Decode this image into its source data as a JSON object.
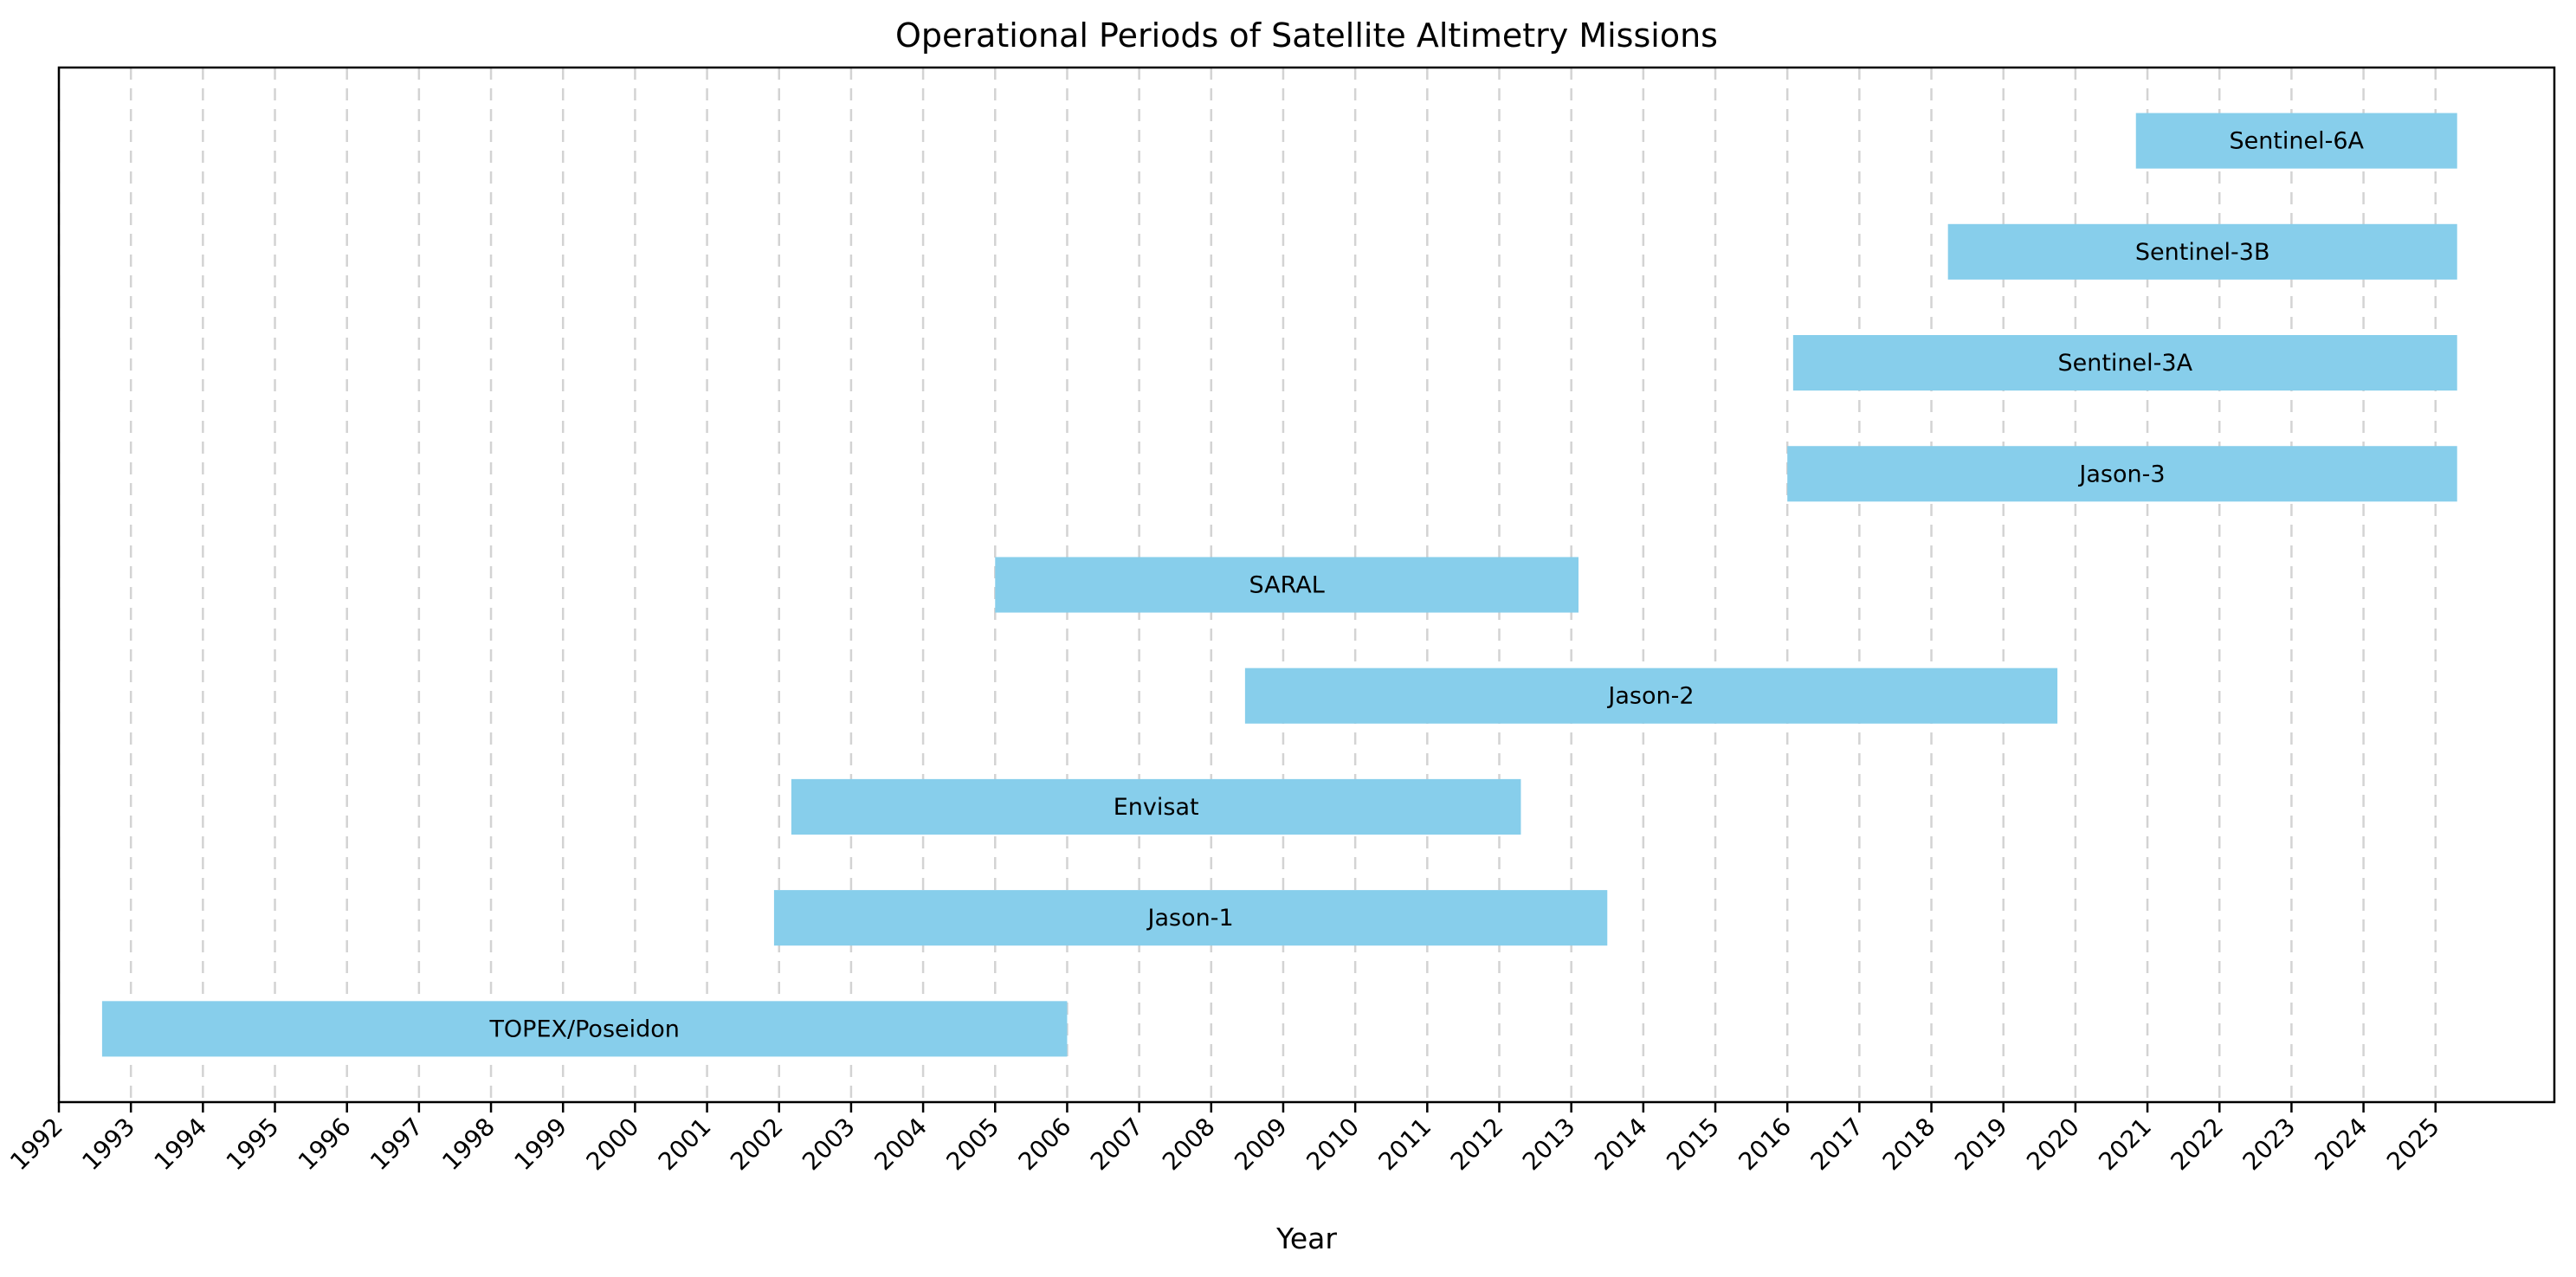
{
  "chart_data": {
    "type": "bar",
    "orientation": "horizontal",
    "title": "Operational Periods of Satellite Altimetry Missions",
    "xlabel": "Year",
    "ylabel": "",
    "xlim": [
      1992,
      2026.65
    ],
    "ylim": [
      -0.66,
      8.66
    ],
    "grid": "x, dashed",
    "bar_color": "#87CEEB",
    "x_ticks": [
      "1992",
      "1993",
      "1994",
      "1995",
      "1996",
      "1997",
      "1998",
      "1999",
      "2000",
      "2001",
      "2002",
      "2003",
      "2004",
      "2005",
      "2006",
      "2007",
      "2008",
      "2009",
      "2010",
      "2011",
      "2012",
      "2013",
      "2014",
      "2015",
      "2016",
      "2017",
      "2018",
      "2019",
      "2020",
      "2021",
      "2022",
      "2023",
      "2024",
      "2025"
    ],
    "missions": [
      {
        "name": "TOPEX/Poseidon",
        "start": 1992.6,
        "end": 2006.0
      },
      {
        "name": "Jason-1",
        "start": 2001.93,
        "end": 2013.5
      },
      {
        "name": "Envisat",
        "start": 2002.17,
        "end": 2012.3
      },
      {
        "name": "Jason-2",
        "start": 2008.47,
        "end": 2019.75
      },
      {
        "name": "SARAL",
        "start": 2005.0,
        "end": 2013.1
      },
      {
        "name": "Jason-3",
        "start": 2016.0,
        "end": 2025.3
      },
      {
        "name": "Sentinel-3A",
        "start": 2016.08,
        "end": 2025.3
      },
      {
        "name": "Sentinel-3B",
        "start": 2018.23,
        "end": 2025.3
      },
      {
        "name": "Sentinel-6A",
        "start": 2020.84,
        "end": 2025.3
      }
    ]
  }
}
